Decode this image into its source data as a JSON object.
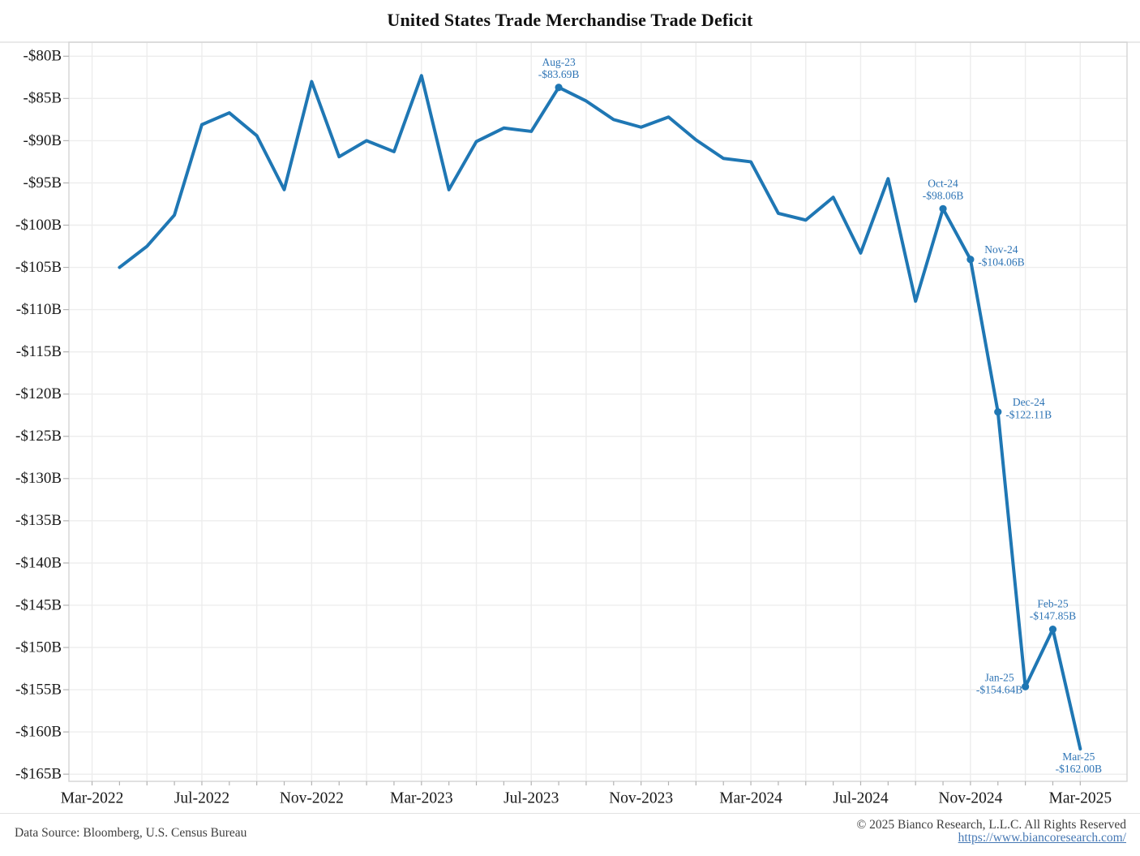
{
  "page": {
    "title": "United States Trade Merchandise Trade Deficit"
  },
  "chart_data": {
    "type": "line",
    "title": "United States Trade Merchandise Trade Deficit",
    "unit": "USD billions per month",
    "grid": "on",
    "legend": "none",
    "line_color": "#1f77b4",
    "annotation_color": "#2e74b5",
    "axis_text_color": "#1a1a1a",
    "x": [
      "Apr-22",
      "May-22",
      "Jun-22",
      "Jul-22",
      "Aug-22",
      "Sep-22",
      "Oct-22",
      "Nov-22",
      "Dec-22",
      "Jan-23",
      "Feb-23",
      "Mar-23",
      "Apr-23",
      "May-23",
      "Jun-23",
      "Jul-23",
      "Aug-23",
      "Sep-23",
      "Oct-23",
      "Nov-23",
      "Dec-23",
      "Jan-24",
      "Feb-24",
      "Mar-24",
      "Apr-24",
      "May-24",
      "Jun-24",
      "Jul-24",
      "Aug-24",
      "Sep-24",
      "Oct-24",
      "Nov-24",
      "Dec-24",
      "Jan-25",
      "Feb-25",
      "Mar-25"
    ],
    "values": [
      -105.0,
      -102.5,
      -98.8,
      -88.1,
      -86.7,
      -89.4,
      -95.8,
      -83.0,
      -91.9,
      -90.0,
      -91.3,
      -82.3,
      -95.8,
      -90.1,
      -88.5,
      -88.9,
      -83.69,
      -85.3,
      -87.5,
      -88.4,
      -87.2,
      -89.9,
      -92.1,
      -92.5,
      -98.6,
      -99.4,
      -96.7,
      -103.3,
      -94.5,
      -109.0,
      -98.06,
      -104.06,
      -122.11,
      -154.64,
      -147.85,
      -162.0
    ],
    "ylim": [
      -165,
      -80
    ],
    "ytick_step": 5,
    "ytick_labels": [
      "-$80B",
      "-$85B",
      "-$90B",
      "-$95B",
      "-$100B",
      "-$105B",
      "-$110B",
      "-$115B",
      "-$120B",
      "-$125B",
      "-$130B",
      "-$135B",
      "-$140B",
      "-$145B",
      "-$150B",
      "-$155B",
      "-$160B",
      "-$165B"
    ],
    "xticks": [
      {
        "label": "Mar-2022",
        "m": -1
      },
      {
        "label": "Jul-2022",
        "m": 3
      },
      {
        "label": "Nov-2022",
        "m": 7
      },
      {
        "label": "Mar-2023",
        "m": 11
      },
      {
        "label": "Jul-2023",
        "m": 15
      },
      {
        "label": "Nov-2023",
        "m": 19
      },
      {
        "label": "Mar-2024",
        "m": 23
      },
      {
        "label": "Jul-2024",
        "m": 27
      },
      {
        "label": "Nov-2024",
        "m": 31
      },
      {
        "label": "Mar-2025",
        "m": 35
      }
    ],
    "annotations": [
      {
        "month": "Aug-23",
        "line1": "Aug-23",
        "line2": "-$83.69B",
        "placement": "above",
        "marker": true
      },
      {
        "month": "Oct-24",
        "line1": "Oct-24",
        "line2": "-$98.06B",
        "placement": "above",
        "marker": true
      },
      {
        "month": "Nov-24",
        "line1": "Nov-24",
        "line2": "-$104.06B",
        "placement": "right",
        "marker": true
      },
      {
        "month": "Dec-24",
        "line1": "Dec-24",
        "line2": "-$122.11B",
        "placement": "right",
        "marker": true
      },
      {
        "month": "Jan-25",
        "line1": "Jan-25",
        "line2": "-$154.64B",
        "placement": "left",
        "marker": true
      },
      {
        "month": "Feb-25",
        "line1": "Feb-25",
        "line2": "-$147.85B",
        "placement": "above",
        "marker": true
      },
      {
        "month": "Mar-25",
        "line1": "Mar-25",
        "line2": "-$162.00B",
        "placement": "below",
        "marker": false
      }
    ]
  },
  "footer": {
    "source": "Data Source: Bloomberg, U.S. Census Bureau",
    "copyright": "© 2025 Bianco Research, L.L.C. All Rights Reserved",
    "link": "https://www.biancoresearch.com/"
  }
}
